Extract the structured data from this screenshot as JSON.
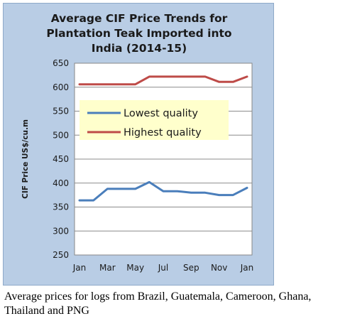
{
  "chart_data": {
    "type": "line",
    "title_lines": [
      "Average CIF Price Trends for",
      "Plantation Teak Imported into",
      "India (2014-15)"
    ],
    "ylabel": "CIF Price US$/cu.m",
    "ylim": [
      250,
      650
    ],
    "yticks": [
      250,
      300,
      350,
      400,
      450,
      500,
      550,
      600,
      650
    ],
    "x_labels": [
      "Jan",
      "Mar",
      "May",
      "Jul",
      "Sep",
      "Nov",
      "Jan"
    ],
    "x": [
      0,
      1,
      2,
      3,
      4,
      5,
      6,
      7,
      8,
      9,
      10,
      11,
      12
    ],
    "grid": "horizontal",
    "legend_placement": "center-left",
    "series": [
      {
        "name": "Lowest quality",
        "color": "#4a7ebb",
        "values": [
          364,
          364,
          388,
          388,
          388,
          402,
          383,
          383,
          380,
          380,
          375,
          375,
          390
        ]
      },
      {
        "name": "Highest quality",
        "color": "#be4b48",
        "values": [
          606,
          606,
          606,
          606,
          606,
          622,
          622,
          622,
          622,
          622,
          611,
          611,
          622
        ]
      }
    ]
  },
  "caption": "Average prices for logs from Brazil, Guatemala, Cameroon, Ghana, Thailand and PNG"
}
